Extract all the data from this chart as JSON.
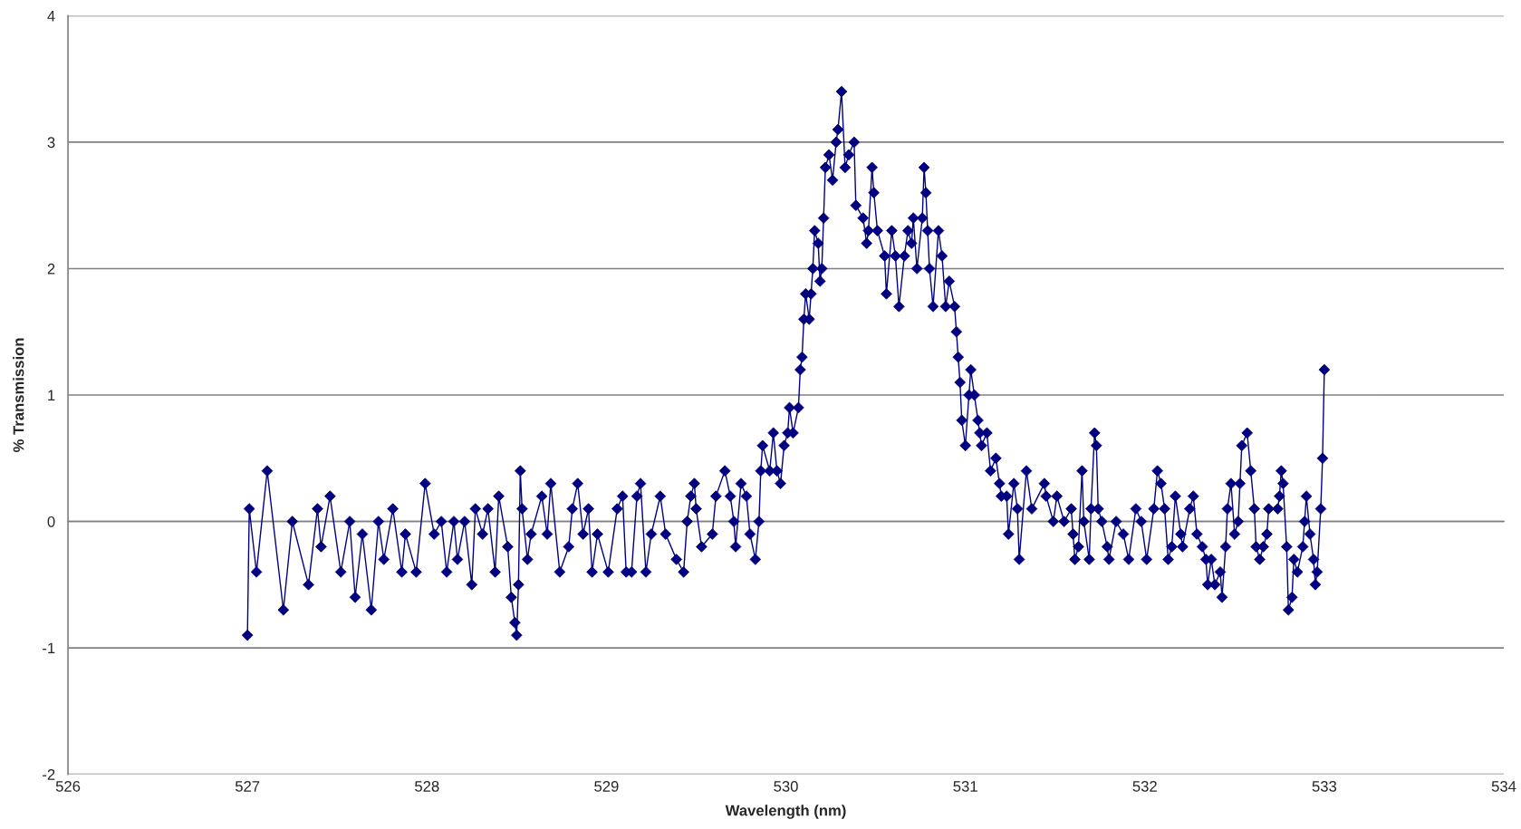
{
  "chart_data": {
    "type": "line",
    "xlabel": "Wavelength (nm)",
    "ylabel": "% Transmission",
    "series": [
      {
        "color": "#000080",
        "x": [
          527.0,
          527.01,
          527.05,
          527.11,
          527.2,
          527.25,
          527.34,
          527.39,
          527.41,
          527.46,
          527.52,
          527.57,
          527.6,
          527.64,
          527.69,
          527.73,
          527.76,
          527.81,
          527.86,
          527.88,
          527.94,
          527.99,
          528.04,
          528.08,
          528.11,
          528.15,
          528.17,
          528.21,
          528.25,
          528.27,
          528.31,
          528.34,
          528.38,
          528.4,
          528.45,
          528.47,
          528.49,
          528.5,
          528.51,
          528.52,
          528.53,
          528.56,
          528.58,
          528.64,
          528.67,
          528.69,
          528.74,
          528.79,
          528.81,
          528.84,
          528.87,
          528.9,
          528.92,
          528.95,
          529.01,
          529.06,
          529.09,
          529.11,
          529.14,
          529.17,
          529.19,
          529.22,
          529.25,
          529.3,
          529.33,
          529.39,
          529.43,
          529.45,
          529.47,
          529.49,
          529.5,
          529.53,
          529.59,
          529.61,
          529.66,
          529.69,
          529.71,
          529.72,
          529.75,
          529.78,
          529.8,
          529.83,
          529.85,
          529.86,
          529.87,
          529.91,
          529.93,
          529.95,
          529.97,
          529.99,
          530.01,
          530.02,
          530.04,
          530.07,
          530.08,
          530.09,
          530.1,
          530.11,
          530.13,
          530.14,
          530.15,
          530.16,
          530.18,
          530.19,
          530.2,
          530.21,
          530.22,
          530.24,
          530.26,
          530.28,
          530.29,
          530.31,
          530.33,
          530.35,
          530.38,
          530.39,
          530.43,
          530.45,
          530.46,
          530.48,
          530.49,
          530.51,
          530.55,
          530.56,
          530.59,
          530.61,
          530.63,
          530.66,
          530.68,
          530.7,
          530.71,
          530.73,
          530.76,
          530.77,
          530.78,
          530.79,
          530.8,
          530.82,
          530.85,
          530.87,
          530.89,
          530.91,
          530.94,
          530.95,
          530.96,
          530.97,
          530.98,
          531.0,
          531.02,
          531.03,
          531.05,
          531.07,
          531.08,
          531.09,
          531.12,
          531.14,
          531.17,
          531.19,
          531.2,
          531.23,
          531.24,
          531.27,
          531.29,
          531.3,
          531.34,
          531.37,
          531.44,
          531.45,
          531.49,
          531.51,
          531.55,
          531.59,
          531.6,
          531.61,
          531.63,
          531.65,
          531.66,
          531.69,
          531.7,
          531.72,
          531.73,
          531.74,
          531.76,
          531.79,
          531.8,
          531.84,
          531.88,
          531.91,
          531.95,
          531.98,
          532.01,
          532.05,
          532.07,
          532.09,
          532.11,
          532.13,
          532.15,
          532.17,
          532.2,
          532.21,
          532.25,
          532.27,
          532.29,
          532.32,
          532.34,
          532.35,
          532.37,
          532.39,
          532.42,
          532.43,
          532.45,
          532.46,
          532.48,
          532.5,
          532.52,
          532.53,
          532.54,
          532.57,
          532.59,
          532.61,
          532.62,
          532.64,
          532.66,
          532.68,
          532.69,
          532.74,
          532.75,
          532.76,
          532.77,
          532.79,
          532.8,
          532.82,
          532.83,
          532.85,
          532.88,
          532.89,
          532.9,
          532.92,
          532.94,
          532.95,
          532.96,
          532.98,
          532.99,
          533.0
        ],
        "values": [
          -0.9,
          0.1,
          -0.4,
          0.4,
          -0.7,
          0.0,
          -0.5,
          0.1,
          -0.2,
          0.2,
          -0.4,
          0.0,
          -0.6,
          -0.1,
          -0.7,
          0.0,
          -0.3,
          0.1,
          -0.4,
          -0.1,
          -0.4,
          0.3,
          -0.1,
          0.0,
          -0.4,
          0.0,
          -0.3,
          0.0,
          -0.5,
          0.1,
          -0.1,
          0.1,
          -0.4,
          0.2,
          -0.2,
          -0.6,
          -0.8,
          -0.9,
          -0.5,
          0.4,
          0.1,
          -0.3,
          -0.1,
          0.2,
          -0.1,
          0.3,
          -0.4,
          -0.2,
          0.1,
          0.3,
          -0.1,
          0.1,
          -0.4,
          -0.1,
          -0.4,
          0.1,
          0.2,
          -0.4,
          -0.4,
          0.2,
          0.3,
          -0.4,
          -0.1,
          0.2,
          -0.1,
          -0.3,
          -0.4,
          0.0,
          0.2,
          0.3,
          0.1,
          -0.2,
          -0.1,
          0.2,
          0.4,
          0.2,
          0.0,
          -0.2,
          0.3,
          0.2,
          -0.1,
          -0.3,
          0.0,
          0.4,
          0.6,
          0.4,
          0.7,
          0.4,
          0.3,
          0.6,
          0.7,
          0.9,
          0.7,
          0.9,
          1.2,
          1.3,
          1.6,
          1.8,
          1.6,
          1.8,
          2.0,
          2.3,
          2.2,
          1.9,
          2.0,
          2.4,
          2.8,
          2.9,
          2.7,
          3.0,
          3.1,
          3.4,
          2.8,
          2.9,
          3.0,
          2.5,
          2.4,
          2.2,
          2.3,
          2.8,
          2.6,
          2.3,
          2.1,
          1.8,
          2.3,
          2.1,
          1.7,
          2.1,
          2.3,
          2.2,
          2.4,
          2.0,
          2.4,
          2.8,
          2.6,
          2.3,
          2.0,
          1.7,
          2.3,
          2.1,
          1.7,
          1.9,
          1.7,
          1.5,
          1.3,
          1.1,
          0.8,
          0.6,
          1.0,
          1.2,
          1.0,
          0.8,
          0.7,
          0.6,
          0.7,
          0.4,
          0.5,
          0.3,
          0.2,
          0.2,
          -0.1,
          0.3,
          0.1,
          -0.3,
          0.4,
          0.1,
          0.3,
          0.2,
          0.0,
          0.2,
          0.0,
          0.1,
          -0.1,
          -0.3,
          -0.2,
          0.4,
          0.0,
          -0.3,
          0.1,
          0.7,
          0.6,
          0.1,
          0.0,
          -0.2,
          -0.3,
          0.0,
          -0.1,
          -0.3,
          0.1,
          0.0,
          -0.3,
          0.1,
          0.4,
          0.3,
          0.1,
          -0.3,
          -0.2,
          0.2,
          -0.1,
          -0.2,
          0.1,
          0.2,
          -0.1,
          -0.2,
          -0.3,
          -0.5,
          -0.3,
          -0.5,
          -0.4,
          -0.6,
          -0.2,
          0.1,
          0.3,
          -0.1,
          0.0,
          0.3,
          0.6,
          0.7,
          0.4,
          0.1,
          -0.2,
          -0.3,
          -0.2,
          -0.1,
          0.1,
          0.1,
          0.2,
          0.4,
          0.3,
          -0.2,
          -0.7,
          -0.6,
          -0.3,
          -0.4,
          -0.2,
          0.0,
          0.2,
          -0.1,
          -0.3,
          -0.5,
          -0.4,
          0.1,
          0.5,
          1.2
        ]
      }
    ],
    "xlim": [
      526,
      534
    ],
    "ylim": [
      -2,
      4
    ],
    "xticks": [
      526,
      527,
      528,
      529,
      530,
      531,
      532,
      533,
      534
    ],
    "yticks": [
      -2,
      -1,
      0,
      1,
      2,
      3,
      4
    ],
    "grid": "y",
    "marker": "diamond",
    "line_style": "solid"
  }
}
